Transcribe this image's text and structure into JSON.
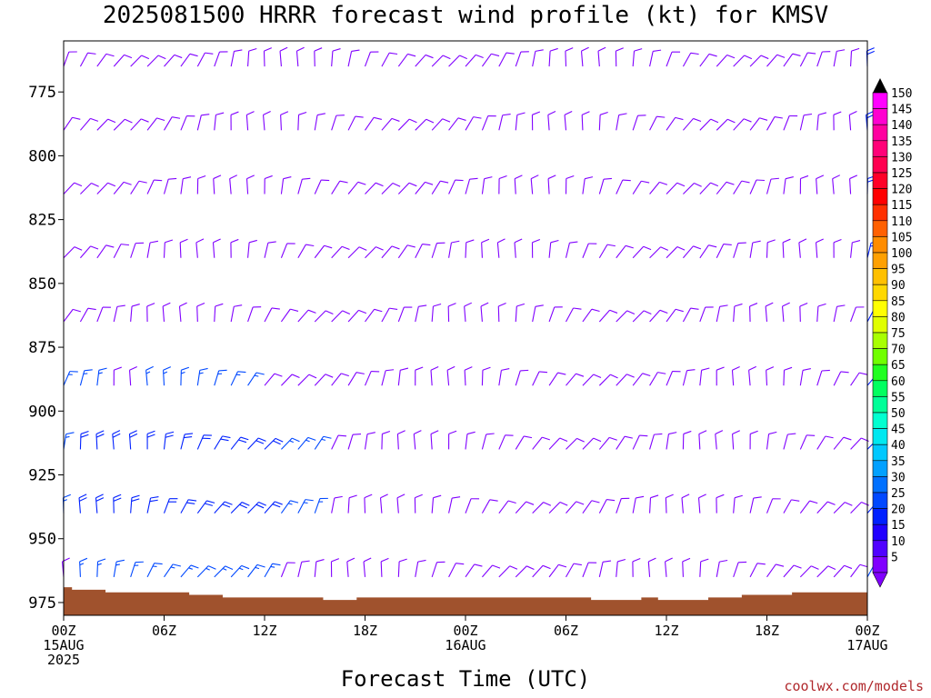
{
  "title": "2025081500 HRRR forecast wind profile (kt) for KMSV",
  "xlabel": "Forecast Time (UTC)",
  "credit": "coolwx.com/models",
  "chart_data": {
    "type": "wind-barb-profile",
    "title": "2025081500 HRRR forecast wind profile (kt) for KMSV",
    "xlabel": "Forecast Time (UTC)",
    "ylabel": "",
    "y_axis_inverted": true,
    "y_ticks": [
      775,
      800,
      825,
      850,
      875,
      900,
      925,
      950,
      975
    ],
    "y_range": [
      755,
      980
    ],
    "x_range_hours": [
      0,
      48
    ],
    "x_ticks": [
      {
        "hour": 0,
        "lines": [
          "00Z",
          "15AUG",
          "2025"
        ]
      },
      {
        "hour": 6,
        "lines": [
          "06Z"
        ]
      },
      {
        "hour": 12,
        "lines": [
          "12Z"
        ]
      },
      {
        "hour": 18,
        "lines": [
          "18Z"
        ]
      },
      {
        "hour": 24,
        "lines": [
          "00Z",
          "16AUG"
        ]
      },
      {
        "hour": 30,
        "lines": [
          "06Z"
        ]
      },
      {
        "hour": 36,
        "lines": [
          "12Z"
        ]
      },
      {
        "hour": 42,
        "lines": [
          "18Z"
        ]
      },
      {
        "hour": 48,
        "lines": [
          "00Z",
          "17AUG"
        ]
      }
    ],
    "pressure_levels": [
      765,
      790,
      815,
      840,
      865,
      890,
      915,
      940,
      965
    ],
    "wind_speed_kt": [
      [
        10,
        10,
        10,
        10,
        10,
        10,
        10,
        10,
        10,
        10,
        10,
        10,
        10,
        10,
        10,
        10,
        10,
        10,
        10,
        10,
        10,
        10,
        10,
        10,
        10,
        10,
        10,
        10,
        10,
        10,
        10,
        10,
        10,
        10,
        10,
        10,
        10,
        10,
        10,
        10,
        10,
        10,
        10,
        10,
        10,
        10,
        10,
        10,
        20
      ],
      [
        10,
        10,
        10,
        10,
        10,
        10,
        10,
        10,
        10,
        10,
        10,
        10,
        10,
        10,
        10,
        10,
        10,
        10,
        10,
        10,
        10,
        10,
        10,
        10,
        10,
        10,
        10,
        10,
        10,
        10,
        10,
        10,
        10,
        10,
        10,
        10,
        10,
        10,
        10,
        10,
        10,
        10,
        10,
        10,
        10,
        10,
        10,
        10,
        20
      ],
      [
        10,
        10,
        10,
        10,
        10,
        10,
        10,
        10,
        10,
        10,
        10,
        10,
        10,
        10,
        10,
        10,
        10,
        10,
        10,
        10,
        10,
        10,
        10,
        10,
        10,
        10,
        10,
        10,
        10,
        10,
        10,
        10,
        10,
        10,
        10,
        10,
        10,
        10,
        10,
        10,
        10,
        10,
        10,
        10,
        10,
        10,
        10,
        10,
        20
      ],
      [
        10,
        10,
        10,
        10,
        10,
        10,
        10,
        10,
        10,
        10,
        10,
        10,
        10,
        10,
        10,
        10,
        10,
        10,
        10,
        10,
        10,
        10,
        10,
        10,
        10,
        10,
        10,
        10,
        10,
        10,
        10,
        10,
        10,
        10,
        10,
        10,
        10,
        10,
        10,
        10,
        10,
        10,
        10,
        10,
        10,
        10,
        10,
        10,
        20
      ],
      [
        10,
        10,
        10,
        10,
        10,
        10,
        10,
        10,
        10,
        10,
        10,
        10,
        10,
        10,
        10,
        10,
        10,
        10,
        10,
        10,
        10,
        10,
        10,
        10,
        10,
        10,
        10,
        10,
        10,
        10,
        10,
        10,
        10,
        10,
        10,
        10,
        10,
        10,
        10,
        10,
        10,
        10,
        10,
        10,
        10,
        10,
        10,
        10,
        20
      ],
      [
        15,
        15,
        15,
        10,
        10,
        15,
        15,
        15,
        15,
        15,
        15,
        15,
        10,
        10,
        10,
        10,
        10,
        10,
        10,
        10,
        10,
        10,
        10,
        10,
        10,
        10,
        10,
        10,
        10,
        10,
        10,
        10,
        10,
        10,
        10,
        10,
        10,
        10,
        10,
        10,
        10,
        10,
        10,
        10,
        10,
        10,
        10,
        10,
        20
      ],
      [
        15,
        20,
        20,
        20,
        20,
        20,
        20,
        20,
        20,
        20,
        20,
        20,
        20,
        15,
        15,
        15,
        10,
        10,
        10,
        10,
        10,
        10,
        10,
        10,
        10,
        10,
        10,
        10,
        10,
        10,
        10,
        10,
        10,
        10,
        10,
        10,
        10,
        10,
        10,
        10,
        10,
        10,
        10,
        10,
        10,
        10,
        10,
        10,
        20
      ],
      [
        15,
        20,
        20,
        20,
        20,
        20,
        20,
        20,
        20,
        20,
        20,
        20,
        20,
        15,
        15,
        15,
        10,
        10,
        10,
        10,
        10,
        10,
        10,
        10,
        10,
        10,
        10,
        10,
        10,
        10,
        10,
        10,
        10,
        10,
        10,
        10,
        10,
        10,
        10,
        10,
        10,
        10,
        10,
        10,
        10,
        10,
        10,
        10,
        20
      ],
      [
        10,
        15,
        15,
        15,
        15,
        15,
        15,
        15,
        15,
        15,
        15,
        15,
        15,
        10,
        10,
        10,
        10,
        10,
        10,
        10,
        10,
        10,
        10,
        10,
        10,
        10,
        10,
        10,
        10,
        10,
        10,
        10,
        10,
        10,
        10,
        10,
        10,
        10,
        10,
        10,
        10,
        10,
        10,
        10,
        10,
        10,
        10,
        10,
        15
      ]
    ],
    "terrain_surface_mb": [
      969,
      970,
      970,
      971,
      971,
      971,
      971,
      971,
      972,
      972,
      973,
      973,
      973,
      973,
      973,
      973,
      974,
      974,
      973,
      973,
      973,
      973,
      973,
      973,
      973,
      973,
      973,
      973,
      973,
      973,
      973,
      973,
      974,
      974,
      974,
      973,
      974,
      974,
      974,
      973,
      973,
      972,
      972,
      972,
      971,
      971,
      971,
      971,
      971
    ],
    "colorbar": {
      "labels": [
        "150",
        "145",
        "140",
        "135",
        "130",
        "125",
        "120",
        "115",
        "110",
        "105",
        "100",
        "95",
        "90",
        "85",
        "80",
        "75",
        "70",
        "65",
        "60",
        "55",
        "50",
        "45",
        "40",
        "35",
        "30",
        "25",
        "20",
        "15",
        "10",
        "5"
      ],
      "colors": [
        "#ff00ff",
        "#ff00d0",
        "#ff00a0",
        "#ff0078",
        "#ff0050",
        "#ff0028",
        "#ff0000",
        "#ff3000",
        "#ff6000",
        "#ff8c00",
        "#ffa000",
        "#ffc000",
        "#ffd800",
        "#ffff00",
        "#e0ff00",
        "#a8ff00",
        "#70ff00",
        "#20ff20",
        "#00ff60",
        "#00ff98",
        "#00ffd0",
        "#00e8f0",
        "#00c8ff",
        "#00a0ff",
        "#0070ff",
        "#0048ff",
        "#0020ff",
        "#2000ff",
        "#5000ff",
        "#8000ff"
      ],
      "top_arrow_color": "#000000",
      "bottom_arrow_color": "#8000ff"
    },
    "colors": {
      "barb_light": "#8000ff",
      "barb_medium": "#0048ff",
      "barb_strong": "#0020ff",
      "terrain": "#a0522d"
    }
  }
}
